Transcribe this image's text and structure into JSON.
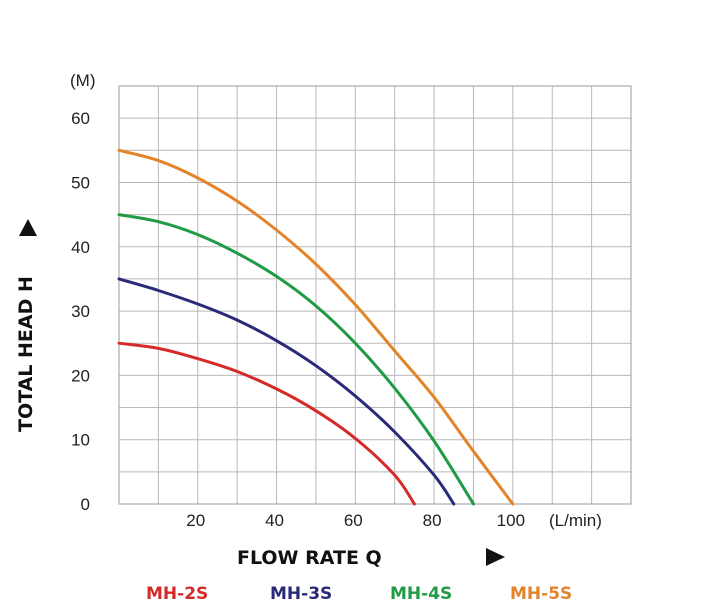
{
  "chart_data": {
    "type": "line",
    "xlabel": "FLOW RATE Q",
    "ylabel": "TOTAL HEAD H",
    "x_unit": "(L/min)",
    "y_unit": "(M)",
    "xlim": [
      0,
      130
    ],
    "ylim": [
      0,
      65
    ],
    "x_ticks": [
      20,
      40,
      60,
      80,
      100
    ],
    "y_ticks": [
      0,
      10,
      20,
      30,
      40,
      50,
      60
    ],
    "grid": true,
    "legend_position": "bottom",
    "series": [
      {
        "name": "MH-2S",
        "color": "#d62a2a",
        "points": [
          [
            0,
            25
          ],
          [
            10,
            24.2
          ],
          [
            20,
            22.6
          ],
          [
            30,
            20.6
          ],
          [
            40,
            17.9
          ],
          [
            50,
            14.5
          ],
          [
            60,
            10.2
          ],
          [
            70,
            4.5
          ],
          [
            75,
            0
          ]
        ]
      },
      {
        "name": "MH-3S",
        "color": "#2a2a7a",
        "points": [
          [
            0,
            35
          ],
          [
            10,
            33.2
          ],
          [
            20,
            31.1
          ],
          [
            30,
            28.6
          ],
          [
            40,
            25.4
          ],
          [
            50,
            21.5
          ],
          [
            60,
            16.8
          ],
          [
            70,
            11.2
          ],
          [
            80,
            4.5
          ],
          [
            85,
            0
          ]
        ]
      },
      {
        "name": "MH-4S",
        "color": "#1f9a45",
        "points": [
          [
            0,
            45
          ],
          [
            10,
            43.9
          ],
          [
            20,
            41.9
          ],
          [
            30,
            39.0
          ],
          [
            40,
            35.4
          ],
          [
            50,
            30.8
          ],
          [
            60,
            25.0
          ],
          [
            70,
            18.0
          ],
          [
            80,
            9.8
          ],
          [
            90,
            0
          ]
        ]
      },
      {
        "name": "MH-5S",
        "color": "#e3842a",
        "points": [
          [
            0,
            55
          ],
          [
            10,
            53.4
          ],
          [
            20,
            50.7
          ],
          [
            30,
            47.1
          ],
          [
            40,
            42.6
          ],
          [
            50,
            37.3
          ],
          [
            60,
            31.0
          ],
          [
            70,
            23.8
          ],
          [
            80,
            16.6
          ],
          [
            90,
            8.2
          ],
          [
            100,
            0
          ]
        ]
      }
    ]
  }
}
